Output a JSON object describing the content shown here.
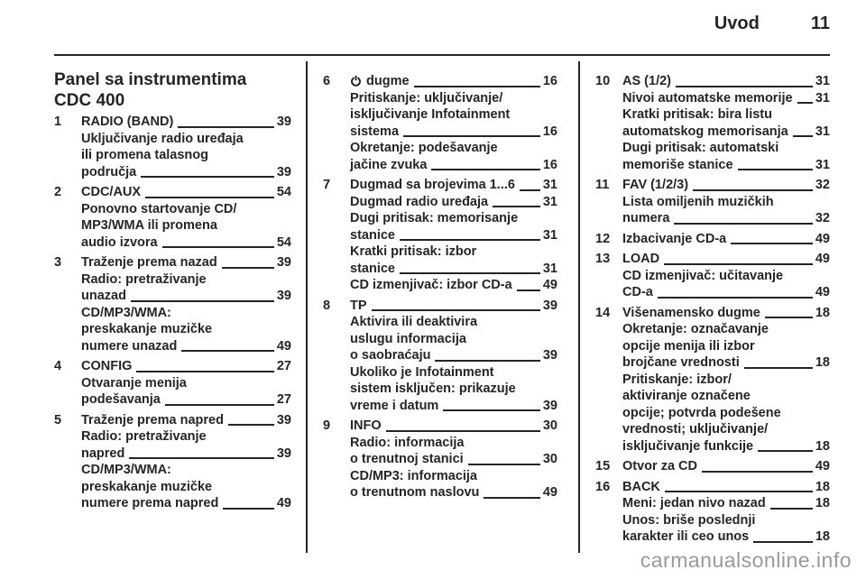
{
  "header": {
    "section": "Uvod",
    "page": "11"
  },
  "title": {
    "line1": "Panel sa instrumentima",
    "line2": "CDC 400"
  },
  "watermark": "carmanualsonline.info",
  "colors": {
    "text": "#282425",
    "watermark": "#9b999a"
  },
  "columns": [
    {
      "items": [
        {
          "n": "1",
          "rows": [
            {
              "t": "RADIO (BAND)",
              "p": "39"
            },
            {
              "t": "Uključivanje radio uređaja"
            },
            {
              "t": "ili promena talasnog"
            },
            {
              "t": "područja",
              "p": "39"
            }
          ]
        },
        {
          "n": "2",
          "rows": [
            {
              "t": "CDC/AUX",
              "p": "54"
            },
            {
              "t": "Ponovno startovanje CD/"
            },
            {
              "t": "MP3/WMA ili promena"
            },
            {
              "t": "audio izvora",
              "p": "54"
            }
          ]
        },
        {
          "n": "3",
          "rows": [
            {
              "t": "Traženje prema nazad",
              "p": "39"
            },
            {
              "t": "Radio: pretraživanje"
            },
            {
              "t": "unazad",
              "p": "39"
            },
            {
              "t": "CD/MP3/WMA:"
            },
            {
              "t": "preskakanje muzičke"
            },
            {
              "t": "numere unazad",
              "p": "49"
            }
          ]
        },
        {
          "n": "4",
          "rows": [
            {
              "t": "CONFIG",
              "p": "27"
            },
            {
              "t": "Otvaranje menija"
            },
            {
              "t": "podešavanja",
              "p": "27"
            }
          ]
        },
        {
          "n": "5",
          "rows": [
            {
              "t": "Traženje prema napred",
              "p": "39"
            },
            {
              "t": "Radio: pretraživanje"
            },
            {
              "t": "napred",
              "p": "39"
            },
            {
              "t": "CD/MP3/WMA:"
            },
            {
              "t": "preskakanje muzičke"
            },
            {
              "t": "numere prema napred",
              "p": "49"
            }
          ]
        }
      ]
    },
    {
      "items": [
        {
          "n": "6",
          "rows": [
            {
              "t": "dugme",
              "p": "16",
              "icon": "power"
            },
            {
              "t": "Pritiskanje: uključivanje/"
            },
            {
              "t": "isključivanje Infotainment"
            },
            {
              "t": "sistema",
              "p": "16"
            },
            {
              "t": "Okretanje: podešavanje"
            },
            {
              "t": "jačine zvuka",
              "p": "16"
            }
          ]
        },
        {
          "n": "7",
          "rows": [
            {
              "t": "Dugmad sa brojevima 1...6",
              "p": "31"
            },
            {
              "t": "Dugmad radio uređaja",
              "p": "31"
            },
            {
              "t": "Dugi pritisak: memorisanje"
            },
            {
              "t": "stanice",
              "p": "31"
            },
            {
              "t": "Kratki pritisak: izbor"
            },
            {
              "t": "stanice",
              "p": "31"
            },
            {
              "t": "CD izmenjivač: izbor CD-a",
              "p": "49"
            }
          ]
        },
        {
          "n": "8",
          "rows": [
            {
              "t": "TP",
              "p": "39"
            },
            {
              "t": "Aktivira ili deaktivira"
            },
            {
              "t": "uslugu informacija"
            },
            {
              "t": "o saobraćaju",
              "p": "39"
            },
            {
              "t": "Ukoliko je Infotainment"
            },
            {
              "t": "sistem isključen: prikazuje"
            },
            {
              "t": "vreme i datum",
              "p": "39"
            }
          ]
        },
        {
          "n": "9",
          "rows": [
            {
              "t": "INFO",
              "p": "30"
            },
            {
              "t": "Radio: informacija"
            },
            {
              "t": "o trenutnoj stanici",
              "p": "30"
            },
            {
              "t": "CD/MP3: informacija"
            },
            {
              "t": "o trenutnom naslovu",
              "p": "49"
            }
          ]
        }
      ]
    },
    {
      "items": [
        {
          "n": "10",
          "rows": [
            {
              "t": "AS (1/2)",
              "p": "31"
            },
            {
              "t": "Nivoi automatske memorije",
              "p": "31"
            },
            {
              "t": "Kratki pritisak: bira listu"
            },
            {
              "t": "automatskog memorisanja",
              "p": "31"
            },
            {
              "t": "Dugi pritisak: automatski"
            },
            {
              "t": "memoriše stanice",
              "p": "31"
            }
          ]
        },
        {
          "n": "11",
          "rows": [
            {
              "t": "FAV (1/2/3)",
              "p": "32"
            },
            {
              "t": "Lista omiljenih muzičkih"
            },
            {
              "t": "numera",
              "p": "32"
            }
          ]
        },
        {
          "n": "12",
          "rows": [
            {
              "t": "Izbacivanje CD-a",
              "p": "49"
            }
          ]
        },
        {
          "n": "13",
          "rows": [
            {
              "t": "LOAD",
              "p": "49"
            },
            {
              "t": "CD izmenjivač: učitavanje"
            },
            {
              "t": "CD-a",
              "p": "49"
            }
          ]
        },
        {
          "n": "14",
          "rows": [
            {
              "t": "Višenamensko dugme",
              "p": "18"
            },
            {
              "t": "Okretanje: označavanje"
            },
            {
              "t": "opcije menija ili izbor"
            },
            {
              "t": "brojčane vrednosti",
              "p": "18"
            },
            {
              "t": "Pritiskanje: izbor/"
            },
            {
              "t": "aktiviranje označene"
            },
            {
              "t": "opcije; potvrda podešene"
            },
            {
              "t": "vrednosti; uključivanje/"
            },
            {
              "t": "isključivanje funkcije",
              "p": "18"
            }
          ]
        },
        {
          "n": "15",
          "rows": [
            {
              "t": "Otvor za CD",
              "p": "49"
            }
          ]
        },
        {
          "n": "16",
          "rows": [
            {
              "t": "BACK",
              "p": "18"
            },
            {
              "t": "Meni: jedan nivo nazad",
              "p": "18"
            },
            {
              "t": "Unos: briše poslednji"
            },
            {
              "t": "karakter ili ceo unos",
              "p": "18"
            }
          ]
        }
      ]
    }
  ]
}
